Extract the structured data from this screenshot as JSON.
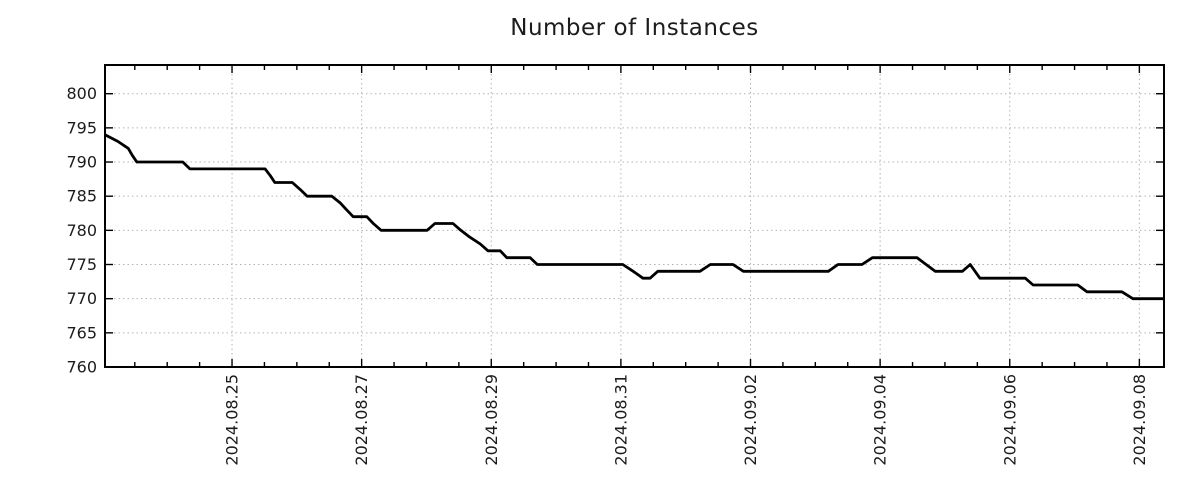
{
  "title": "Number of Instances",
  "colors": {
    "background": "#ffffff",
    "line": "#000000",
    "grid": "#b3b3b3",
    "spine": "#000000",
    "text": "#1c1c1c"
  },
  "chart_data": {
    "type": "line",
    "title": "Number of Instances",
    "xlabel": "",
    "ylabel": "",
    "x_unit": "days since 2024-08-23 00:00 (time axis, estimated from ticks)",
    "xlim": [
      0.04,
      16.38
    ],
    "ylim": [
      760,
      804.2
    ],
    "grid": "dotted",
    "legend": "none",
    "line_width": 2.8,
    "x_major_ticks": [
      {
        "t": 2,
        "label": "2024.08.25"
      },
      {
        "t": 4,
        "label": "2024.08.27"
      },
      {
        "t": 6,
        "label": "2024.08.29"
      },
      {
        "t": 8,
        "label": "2024.08.31"
      },
      {
        "t": 10,
        "label": "2024.09.02"
      },
      {
        "t": 12,
        "label": "2024.09.04"
      },
      {
        "t": 14,
        "label": "2024.09.06"
      },
      {
        "t": 16,
        "label": "2024.09.08"
      }
    ],
    "x_minor_tick_interval": 0.5,
    "y_ticks": [
      {
        "v": 760,
        "label": "760"
      },
      {
        "v": 765,
        "label": "765"
      },
      {
        "v": 770,
        "label": "770"
      },
      {
        "v": 775,
        "label": "775"
      },
      {
        "v": 780,
        "label": "780"
      },
      {
        "v": 785,
        "label": "785"
      },
      {
        "v": 790,
        "label": "790"
      },
      {
        "v": 795,
        "label": "795"
      },
      {
        "v": 800,
        "label": "800"
      }
    ],
    "series": [
      {
        "name": "Number of Instances",
        "points": [
          [
            0.04,
            794
          ],
          [
            0.24,
            793
          ],
          [
            0.4,
            792
          ],
          [
            0.46,
            791
          ],
          [
            0.53,
            790
          ],
          [
            1.24,
            790
          ],
          [
            1.35,
            789
          ],
          [
            2.51,
            789
          ],
          [
            2.59,
            788
          ],
          [
            2.66,
            787
          ],
          [
            2.93,
            787
          ],
          [
            3.05,
            786
          ],
          [
            3.16,
            785
          ],
          [
            3.54,
            785
          ],
          [
            3.67,
            784
          ],
          [
            3.77,
            783
          ],
          [
            3.87,
            782
          ],
          [
            4.08,
            782
          ],
          [
            4.18,
            781
          ],
          [
            4.3,
            780
          ],
          [
            5.01,
            780
          ],
          [
            5.13,
            781
          ],
          [
            5.41,
            781
          ],
          [
            5.53,
            780
          ],
          [
            5.67,
            779
          ],
          [
            5.83,
            778
          ],
          [
            5.95,
            777
          ],
          [
            6.14,
            777
          ],
          [
            6.24,
            776
          ],
          [
            6.6,
            776
          ],
          [
            6.71,
            775
          ],
          [
            8.03,
            775
          ],
          [
            8.19,
            774
          ],
          [
            8.34,
            773
          ],
          [
            8.45,
            773
          ],
          [
            8.57,
            774
          ],
          [
            9.22,
            774
          ],
          [
            9.38,
            775
          ],
          [
            9.73,
            775
          ],
          [
            9.89,
            774
          ],
          [
            11.2,
            774
          ],
          [
            11.35,
            775
          ],
          [
            11.72,
            775
          ],
          [
            11.88,
            776
          ],
          [
            12.57,
            776
          ],
          [
            12.71,
            775
          ],
          [
            12.85,
            774
          ],
          [
            13.27,
            774
          ],
          [
            13.39,
            775
          ],
          [
            13.54,
            773
          ],
          [
            14.24,
            773
          ],
          [
            14.36,
            772
          ],
          [
            15.05,
            772
          ],
          [
            15.19,
            771
          ],
          [
            15.73,
            771
          ],
          [
            15.9,
            770
          ],
          [
            16.37,
            770
          ]
        ]
      }
    ]
  }
}
